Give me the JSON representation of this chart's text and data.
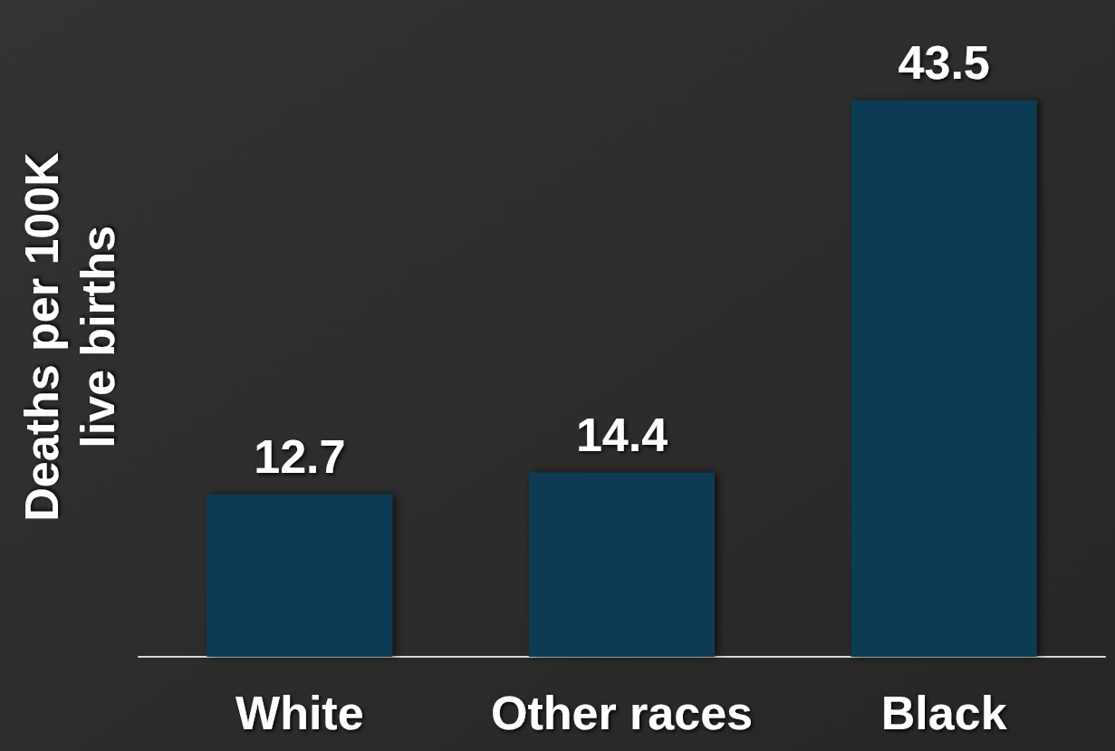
{
  "chart_data": {
    "type": "bar",
    "ylabel": "Deaths per 100K live births",
    "categories": [
      "White",
      "Other races",
      "Black"
    ],
    "values": [
      12.7,
      14.4,
      43.5
    ],
    "color": "#0e3a52",
    "data_labels": true
  }
}
